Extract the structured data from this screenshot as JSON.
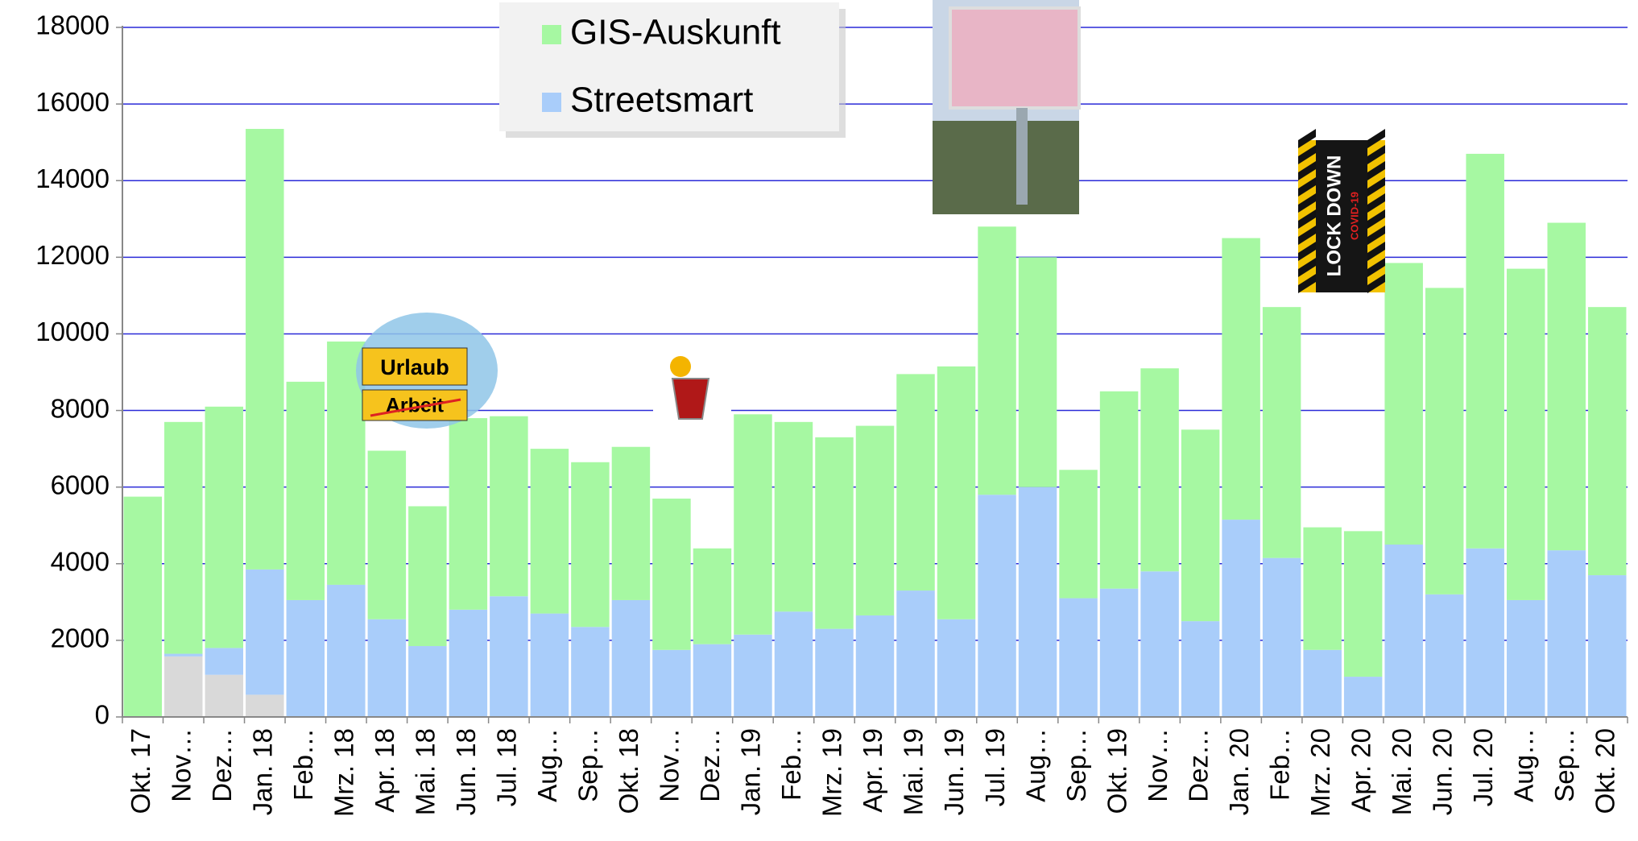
{
  "chart_data": {
    "type": "stacked_bar",
    "categories": [
      "Okt. 17",
      "Nov…",
      "Dez…",
      "Jan. 18",
      "Feb…",
      "Mrz. 18",
      "Apr. 18",
      "Mai. 18",
      "Jun. 18",
      "Jul. 18",
      "Aug…",
      "Sep…",
      "Okt. 18",
      "Nov…",
      "Dez…",
      "Jan. 19",
      "Feb…",
      "Mrz. 19",
      "Apr. 19",
      "Mai. 19",
      "Jun. 19",
      "Jul. 19",
      "Aug…",
      "Sep…",
      "Okt. 19",
      "Nov…",
      "Dez…",
      "Jan. 20",
      "Feb…",
      "Mrz. 20",
      "Apr. 20",
      "Mai. 20",
      "Jun. 20",
      "Jul. 20",
      "Aug…",
      "Sep…",
      "Okt. 20"
    ],
    "series": [
      {
        "color": "#d9d9d9",
        "values": [
          null,
          1580,
          1100,
          580,
          null,
          null,
          null,
          null,
          null,
          null,
          null,
          null,
          null,
          null,
          null,
          null,
          null,
          null,
          null,
          null,
          null,
          null,
          null,
          null,
          null,
          null,
          null,
          null,
          null,
          null,
          null,
          null,
          null,
          null,
          null,
          null,
          null
        ]
      },
      {
        "name": "Streetsmart",
        "color": "#a9cdfa",
        "values": [
          null,
          70,
          700,
          3270,
          3050,
          3450,
          2550,
          1850,
          2800,
          3150,
          2700,
          2350,
          3050,
          1750,
          1900,
          2150,
          2750,
          2300,
          2650,
          3300,
          2550,
          5800,
          6000,
          3100,
          3350,
          3800,
          2500,
          5150,
          4150,
          1750,
          1050,
          4500,
          3200,
          4400,
          3050,
          4350,
          3700
        ]
      },
      {
        "name": "GIS-Auskunft",
        "color": "#a6f8a2",
        "values": [
          5750,
          6050,
          6300,
          11500,
          5700,
          6350,
          4400,
          3650,
          5000,
          4700,
          4300,
          4300,
          4000,
          3950,
          2500,
          5750,
          4950,
          5000,
          4950,
          5650,
          6600,
          7000,
          6000,
          3350,
          5150,
          5300,
          5000,
          7350,
          6550,
          3200,
          3800,
          7350,
          8000,
          10300,
          8650,
          8550,
          7000
        ]
      }
    ],
    "ylim": [
      0,
      18000
    ],
    "yticks": [
      0,
      2000,
      4000,
      6000,
      8000,
      10000,
      12000,
      14000,
      16000,
      18000
    ],
    "grid": true,
    "grid_color": "#2a2ad8",
    "annotations": [
      "Urlaub",
      "Arbeit",
      "LOCK DOWN",
      "COVID-19"
    ]
  }
}
